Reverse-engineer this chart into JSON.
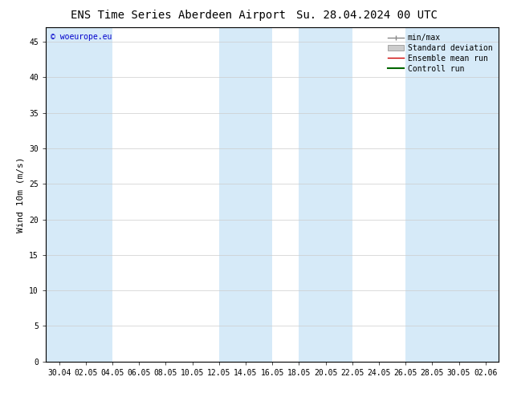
{
  "title_left": "ENS Time Series Aberdeen Airport",
  "title_right": "Su. 28.04.2024 00 UTC",
  "ylabel": "Wind 10m (m/s)",
  "ylim": [
    0,
    47
  ],
  "yticks": [
    0,
    5,
    10,
    15,
    20,
    25,
    30,
    35,
    40,
    45
  ],
  "xtick_labels": [
    "30.04",
    "02.05",
    "04.05",
    "06.05",
    "08.05",
    "10.05",
    "12.05",
    "14.05",
    "16.05",
    "18.05",
    "20.05",
    "22.05",
    "24.05",
    "26.05",
    "28.05",
    "30.05",
    "02.06"
  ],
  "copyright_text": "© woeurope.eu",
  "legend_entries": [
    "min/max",
    "Standard deviation",
    "Ensemble mean run",
    "Controll run"
  ],
  "bg_color": "#ffffff",
  "plot_bg_color": "#ffffff",
  "band_color": "#d6eaf8",
  "title_fontsize": 10,
  "tick_fontsize": 7,
  "ylabel_fontsize": 8,
  "legend_fontsize": 7
}
